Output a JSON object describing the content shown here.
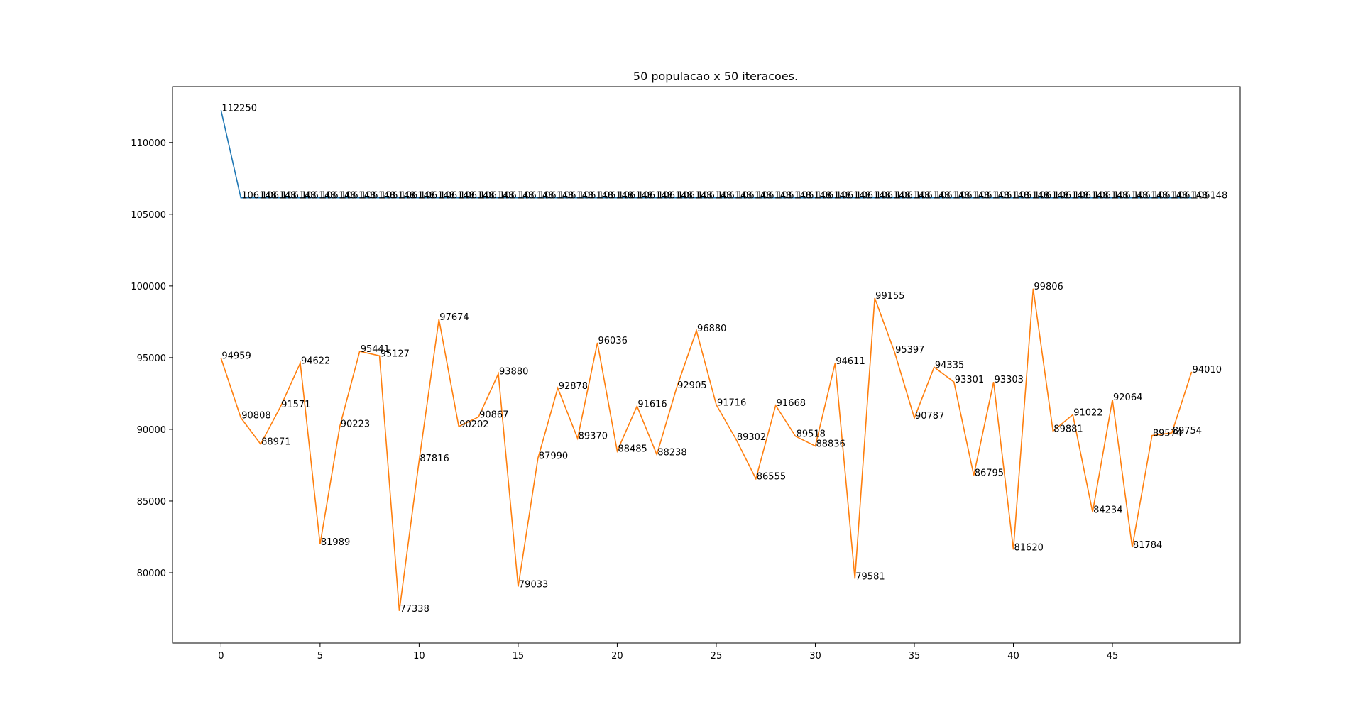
{
  "chart_data": {
    "type": "line",
    "title": "50 populacao x 50 iteracoes.",
    "xlabel": "",
    "ylabel": "",
    "grid": false,
    "x": [
      0,
      1,
      2,
      3,
      4,
      5,
      6,
      7,
      8,
      9,
      10,
      11,
      12,
      13,
      14,
      15,
      16,
      17,
      18,
      19,
      20,
      21,
      22,
      23,
      24,
      25,
      26,
      27,
      28,
      29,
      30,
      31,
      32,
      33,
      34,
      35,
      36,
      37,
      38,
      39,
      40,
      41,
      42,
      43,
      44,
      45,
      46,
      47,
      48,
      49
    ],
    "xlim": [
      -2.45,
      51.45
    ],
    "ylim": [
      75100,
      113900
    ],
    "xticks": [
      0,
      5,
      10,
      15,
      20,
      25,
      30,
      35,
      40,
      45
    ],
    "yticks": [
      80000,
      85000,
      90000,
      95000,
      100000,
      105000,
      110000
    ],
    "series": [
      {
        "color": "#1f77b4",
        "values": [
          112250,
          106148,
          106148,
          106148,
          106148,
          106148,
          106148,
          106148,
          106148,
          106148,
          106148,
          106148,
          106148,
          106148,
          106148,
          106148,
          106148,
          106148,
          106148,
          106148,
          106148,
          106148,
          106148,
          106148,
          106148,
          106148,
          106148,
          106148,
          106148,
          106148,
          106148,
          106148,
          106148,
          106148,
          106148,
          106148,
          106148,
          106148,
          106148,
          106148,
          106148,
          106148,
          106148,
          106148,
          106148,
          106148,
          106148,
          106148,
          106148,
          106148
        ]
      },
      {
        "color": "#ff7f0e",
        "values": [
          94959,
          90808,
          88971,
          91571,
          94622,
          81989,
          90223,
          95441,
          95127,
          77338,
          87816,
          97674,
          90202,
          90867,
          93880,
          79033,
          87990,
          92878,
          89370,
          96036,
          88485,
          91616,
          88238,
          92905,
          96880,
          91716,
          89302,
          86555,
          91668,
          89518,
          88836,
          94611,
          79581,
          99155,
          95397,
          90787,
          94335,
          93301,
          86795,
          93303,
          81620,
          99806,
          89881,
          91022,
          84234,
          92064,
          81784,
          89574,
          89754,
          94010
        ]
      }
    ]
  }
}
